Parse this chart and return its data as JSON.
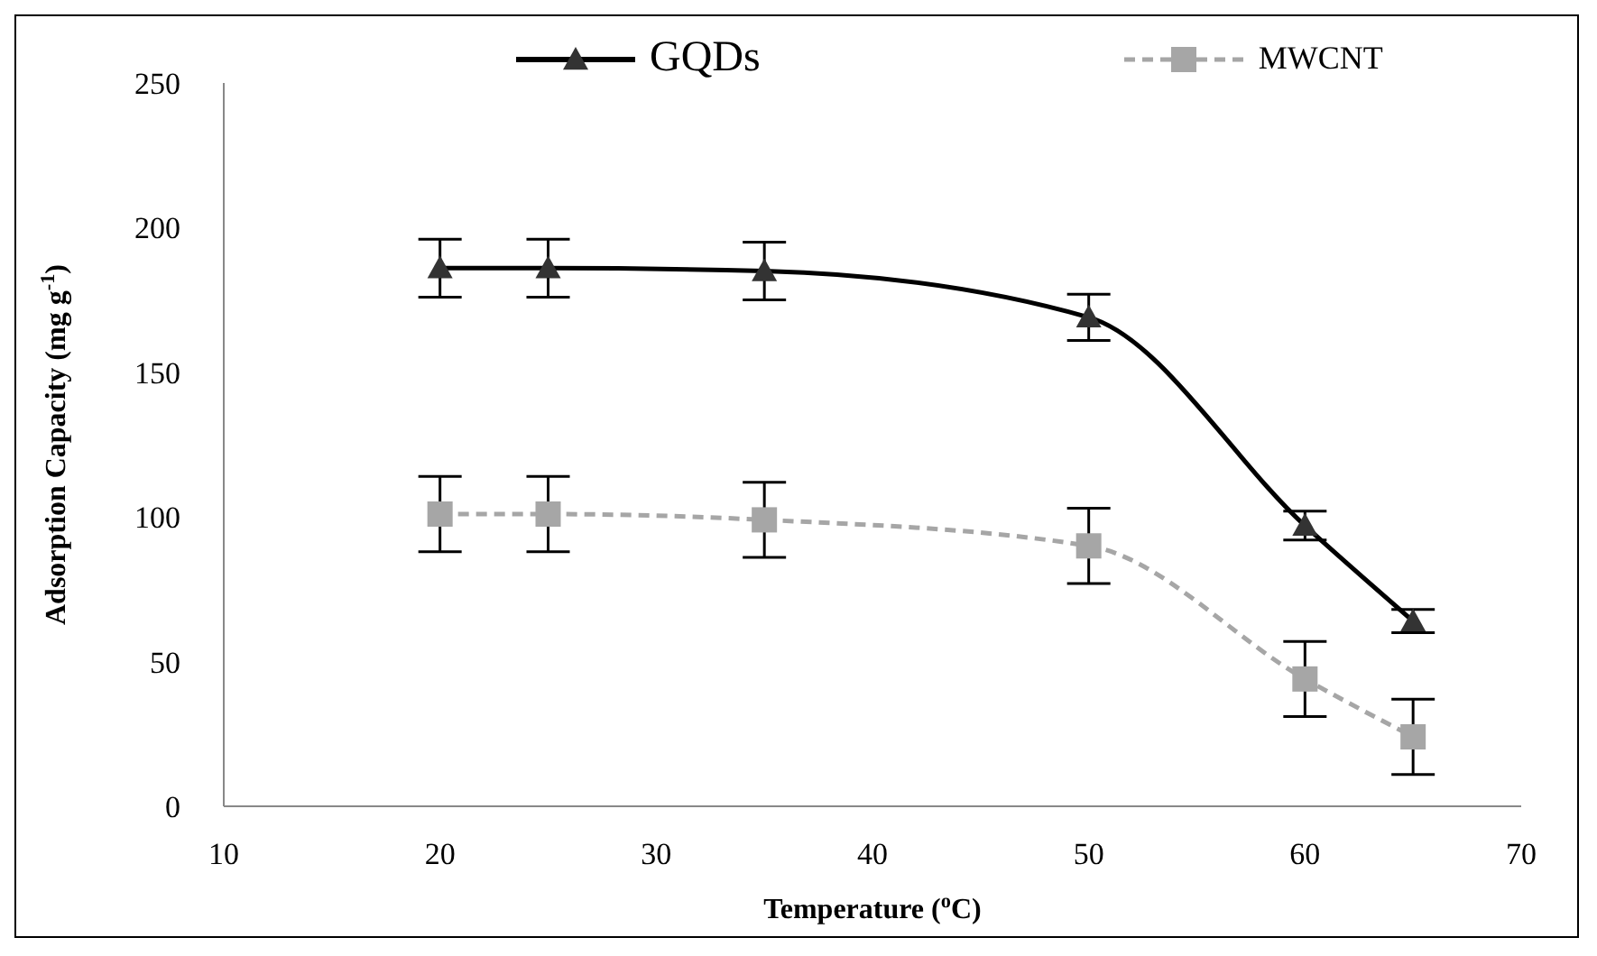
{
  "chart_data": {
    "type": "line",
    "xlabel": "Temperature  ($^{o}$C)",
    "ylabel": "Adsorption  Capacity  (mg g$^{-1}$)",
    "x": [
      20,
      25,
      35,
      50,
      60,
      65
    ],
    "series": [
      {
        "name": "GQDs",
        "color": "#333333",
        "marker": "triangle",
        "line_style": "solid",
        "values": [
          186,
          186,
          185,
          169,
          97,
          64
        ],
        "errors": [
          10,
          10,
          10,
          8,
          5,
          4
        ]
      },
      {
        "name": "MWCNT",
        "color": "#a6a6a6",
        "marker": "square",
        "line_style": "dashed",
        "values": [
          101,
          101,
          99,
          90,
          44,
          24
        ],
        "errors": [
          13,
          13,
          13,
          13,
          13,
          13
        ]
      }
    ],
    "xlim": [
      10,
      70
    ],
    "xticks": [
      10,
      20,
      30,
      40,
      50,
      60,
      70
    ],
    "ylim": [
      0,
      250
    ],
    "yticks": [
      0,
      50,
      100,
      150,
      200,
      250
    ],
    "grid": false,
    "legend": "top"
  }
}
